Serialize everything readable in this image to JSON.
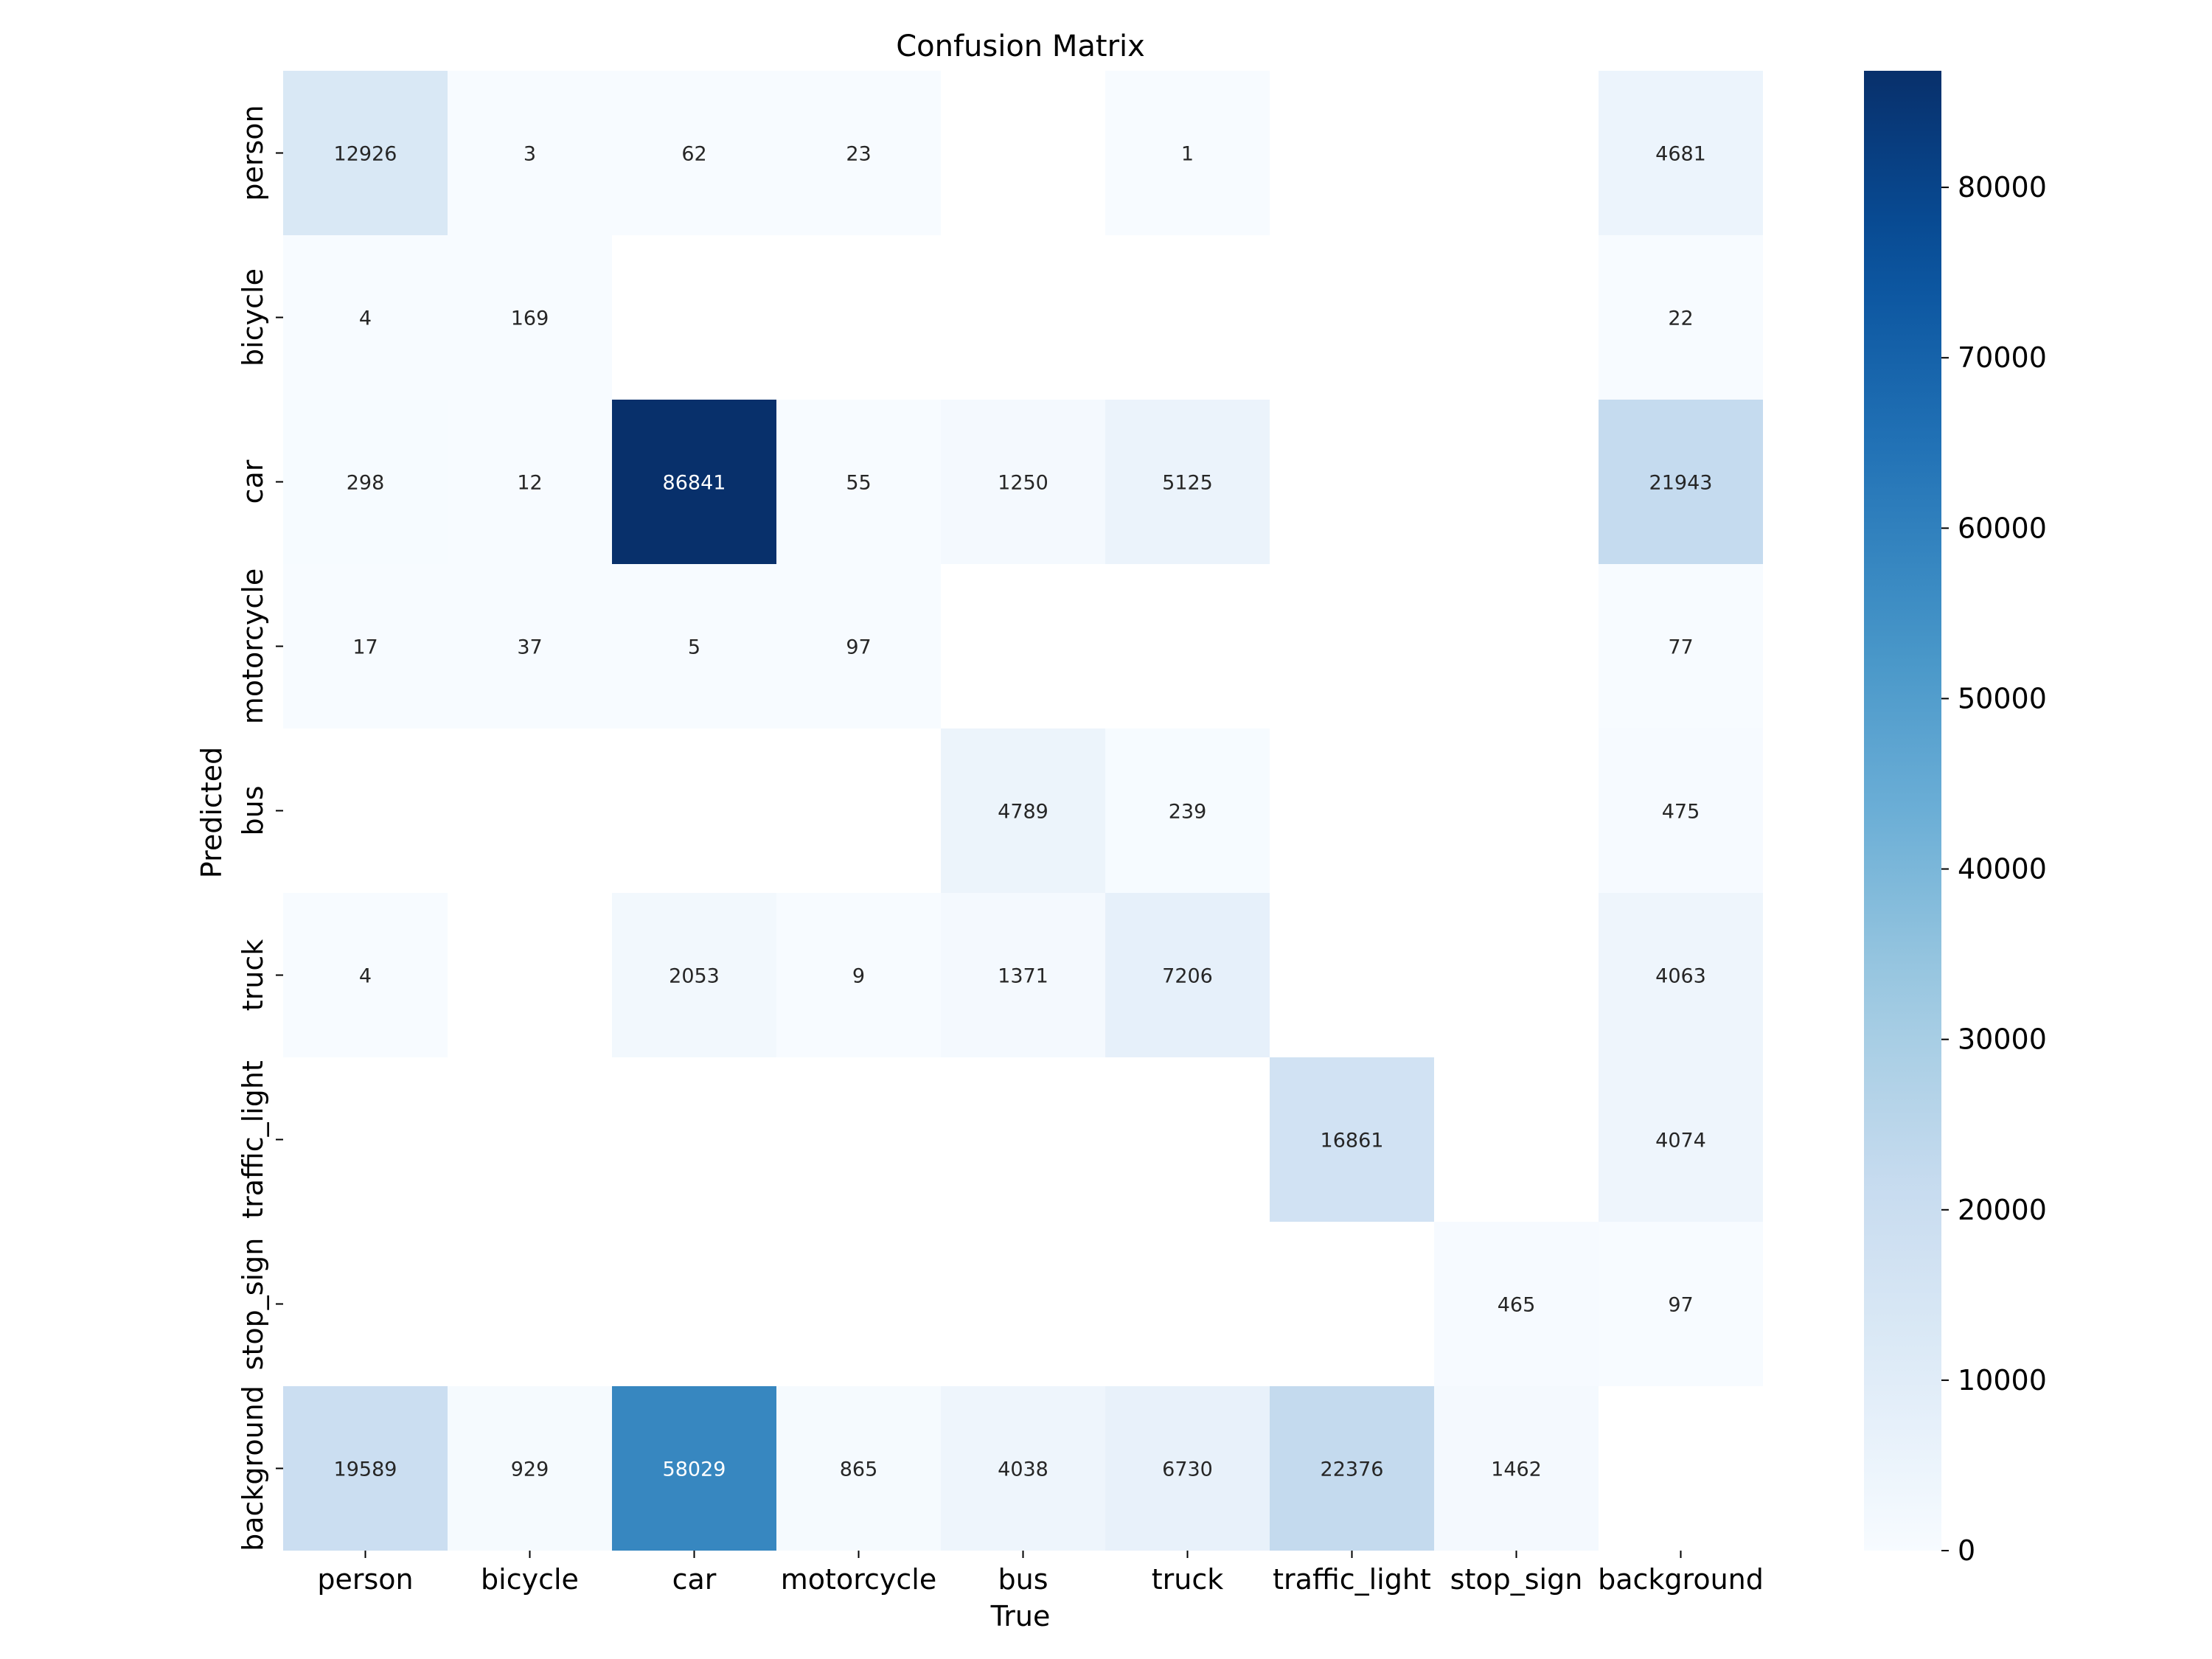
{
  "chart_data": {
    "type": "heatmap",
    "title": "Confusion Matrix",
    "xlabel": "True",
    "ylabel": "Predicted",
    "x_categories": [
      "person",
      "bicycle",
      "car",
      "motorcycle",
      "bus",
      "truck",
      "traffic_light",
      "stop_sign",
      "background"
    ],
    "y_categories": [
      "person",
      "bicycle",
      "car",
      "motorcycle",
      "bus",
      "truck",
      "traffic_light",
      "stop_sign",
      "background"
    ],
    "values": [
      [
        12926,
        3,
        62,
        23,
        null,
        1,
        null,
        null,
        4681
      ],
      [
        4,
        169,
        null,
        null,
        null,
        null,
        null,
        null,
        22
      ],
      [
        298,
        12,
        86841,
        55,
        1250,
        5125,
        null,
        null,
        21943
      ],
      [
        17,
        37,
        5,
        97,
        null,
        null,
        null,
        null,
        77
      ],
      [
        null,
        null,
        null,
        null,
        4789,
        239,
        null,
        null,
        475
      ],
      [
        4,
        null,
        2053,
        9,
        1371,
        7206,
        null,
        null,
        4063
      ],
      [
        null,
        null,
        null,
        null,
        null,
        null,
        16861,
        null,
        4074
      ],
      [
        null,
        null,
        null,
        null,
        null,
        null,
        null,
        465,
        97
      ],
      [
        19589,
        929,
        58029,
        865,
        4038,
        6730,
        22376,
        1462,
        null
      ]
    ],
    "colormap": "Blues",
    "colorbar": {
      "min": 0,
      "max": 86841,
      "ticks": [
        0,
        10000,
        20000,
        30000,
        40000,
        50000,
        60000,
        70000,
        80000
      ]
    },
    "empty_cell_color": "#ffffff"
  }
}
